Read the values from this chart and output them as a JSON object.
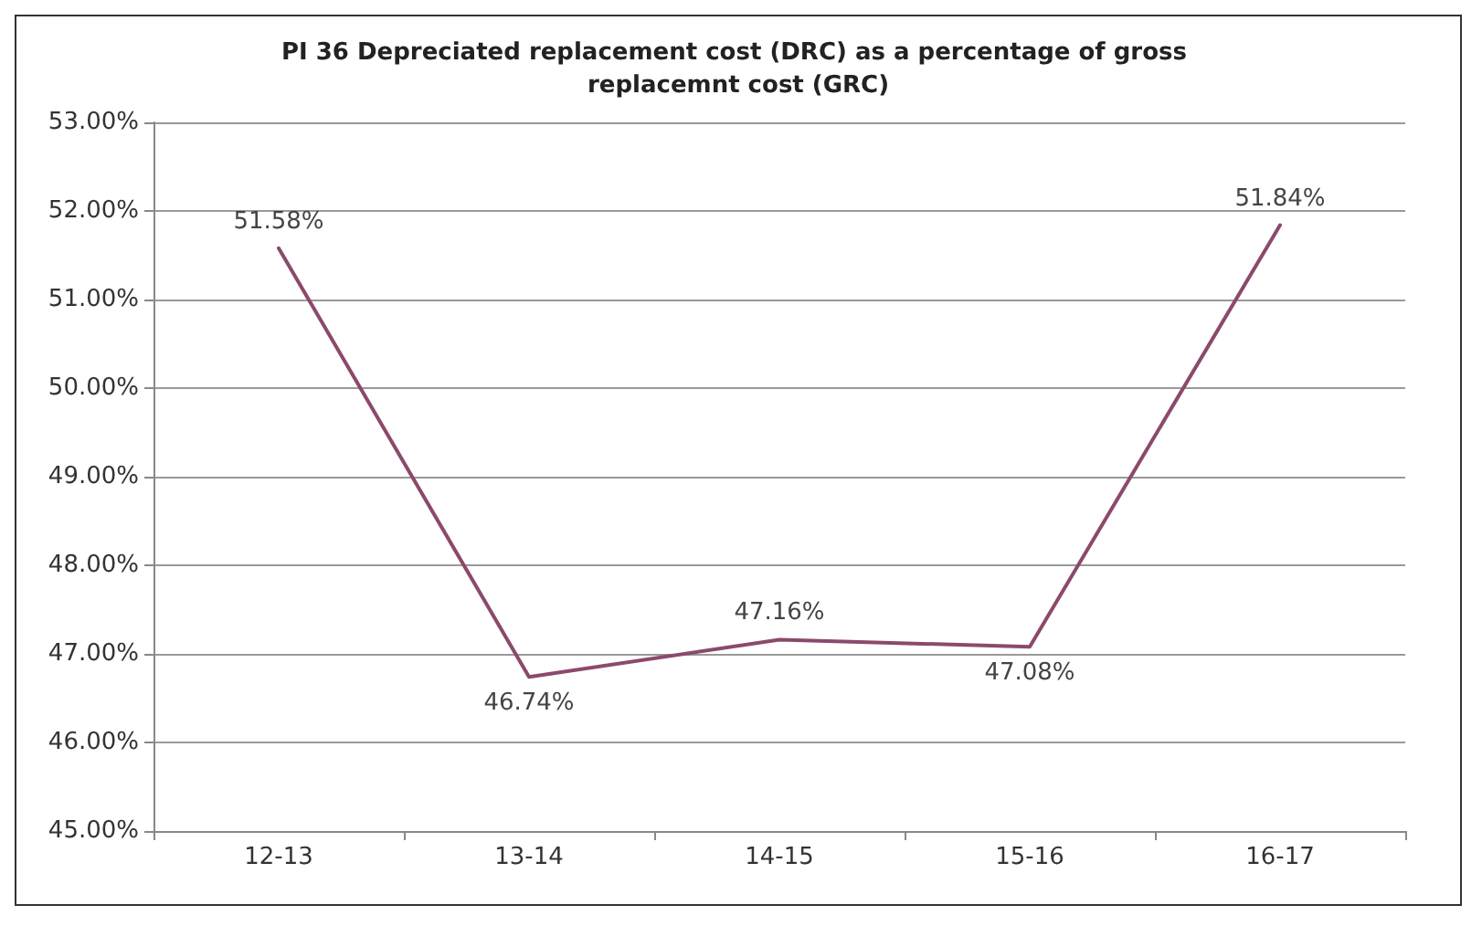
{
  "chart_data": {
    "type": "line",
    "title": "PI 36 Depreciated replacement cost (DRC) as a percentage of gross replacemnt cost (GRC)",
    "categories": [
      "12-13",
      "13-14",
      "14-15",
      "15-16",
      "16-17"
    ],
    "series": [
      {
        "color": "#8b4a6b",
        "values": [
          51.58,
          46.74,
          47.16,
          47.08,
          51.84
        ],
        "value_labels": [
          "51.58%",
          "46.74%",
          "47.16%",
          "47.08%",
          "51.84%"
        ]
      }
    ],
    "ylim": [
      45,
      53
    ],
    "yticks": [
      {
        "value": 45,
        "label": "45.00%"
      },
      {
        "value": 46,
        "label": "46.00%"
      },
      {
        "value": 47,
        "label": "47.00%"
      },
      {
        "value": 48,
        "label": "48.00%"
      },
      {
        "value": 49,
        "label": "49.00%"
      },
      {
        "value": 50,
        "label": "50.00%"
      },
      {
        "value": 51,
        "label": "51.00%"
      },
      {
        "value": 52,
        "label": "52.00%"
      },
      {
        "value": 53,
        "label": "53.00%"
      }
    ],
    "grid": "y",
    "marker": "none",
    "line_style": "solid"
  }
}
